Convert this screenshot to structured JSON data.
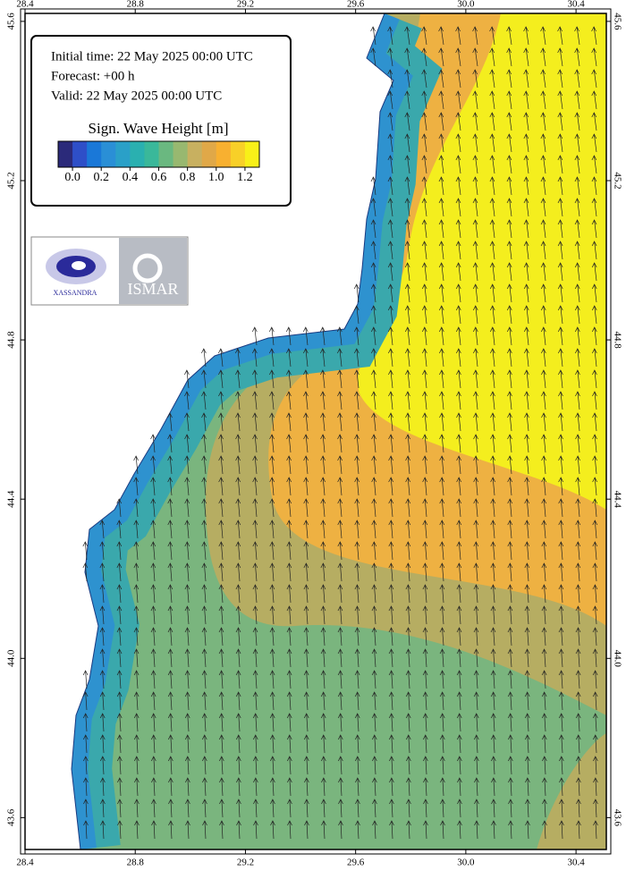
{
  "map": {
    "xlim": [
      28.4,
      30.51
    ],
    "ylim": [
      43.52,
      45.62
    ],
    "lon_ticks": [
      28.4,
      28.8,
      29.2,
      29.6,
      {
        "value": 30,
        "label": "30.0"
      },
      30.4
    ],
    "lat_ticks": [
      43.6,
      {
        "value": 44,
        "label": "44.0"
      },
      44.4,
      44.8,
      45.2,
      45.6
    ]
  },
  "info": {
    "lines": [
      "Initial time: 22 May 2025 00:00 UTC",
      "Forecast: +00 h",
      "Valid: 22 May 2025 00:00 UTC"
    ]
  },
  "colorbar": {
    "title": "Sign. Wave Height [m]",
    "range": [
      -0.1,
      1.3
    ],
    "colors": [
      "#2b2a7a",
      "#2e4fc8",
      "#1a78d8",
      "#2a8fd6",
      "#2aa0c8",
      "#2ab0b0",
      "#3ab89a",
      "#6ab880",
      "#98b870",
      "#c8b060",
      "#e0a848",
      "#f8b030",
      "#f8d028",
      "#f8f018"
    ],
    "ticks": [
      {
        "value": 0,
        "label": "0.0"
      },
      0.2,
      0.4,
      0.6,
      0.8,
      {
        "value": 1,
        "label": "1.0"
      },
      1.2
    ]
  },
  "logos": {
    "left": "XASSANDRA",
    "right": "ISMAR"
  }
}
